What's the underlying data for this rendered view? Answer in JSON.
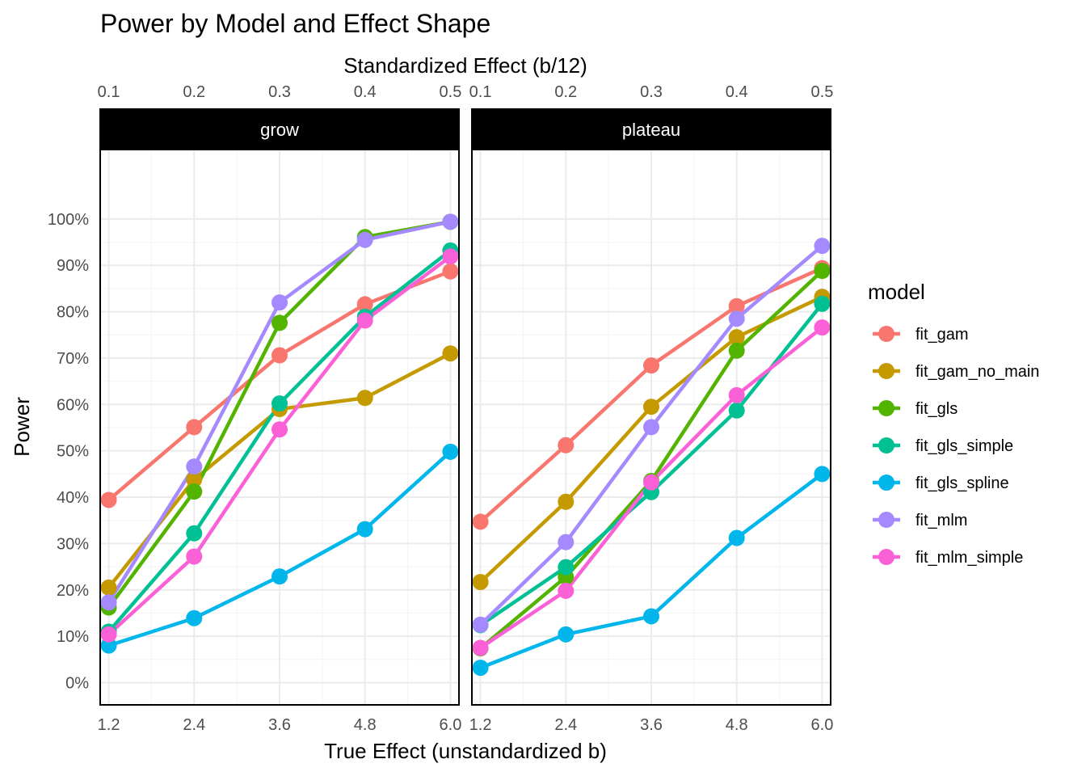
{
  "chart_data": {
    "type": "line",
    "title": "Power by Model and Effect Shape",
    "xlabel": "True Effect (unstandardized b)",
    "secondary_xlabel": "Standardized Effect (b/12)",
    "ylabel": "Power",
    "x": [
      1.2,
      2.4,
      3.6,
      4.8,
      6.0
    ],
    "x_tick_labels": [
      "1.2",
      "2.4",
      "3.6",
      "4.8",
      "6.0"
    ],
    "secondary_x_tick_labels": [
      "0.1",
      "0.2",
      "0.3",
      "0.4",
      "0.5"
    ],
    "y_ticks": [
      0,
      0.1,
      0.2,
      0.3,
      0.4,
      0.5,
      0.6,
      0.7,
      0.8,
      0.9,
      1.0
    ],
    "y_tick_labels": [
      "0%",
      "10%",
      "20%",
      "30%",
      "40%",
      "50%",
      "60%",
      "70%",
      "80%",
      "90%",
      "100%"
    ],
    "xlim": [
      1.08,
      6.12
    ],
    "ylim": [
      -0.048,
      1.148
    ],
    "grid": true,
    "legend": {
      "title": "model",
      "placement": "right",
      "entries": [
        {
          "name": "fit_gam",
          "color": "#F8766D"
        },
        {
          "name": "fit_gam_no_main",
          "color": "#C49A00"
        },
        {
          "name": "fit_gls",
          "color": "#53B400"
        },
        {
          "name": "fit_gls_simple",
          "color": "#00C094"
        },
        {
          "name": "fit_gls_spline",
          "color": "#00B6EB"
        },
        {
          "name": "fit_mlm",
          "color": "#A58AFF"
        },
        {
          "name": "fit_mlm_simple",
          "color": "#FB61D7"
        }
      ]
    },
    "panels": [
      {
        "label": "grow",
        "series": [
          {
            "name": "fit_gam",
            "values": [
              0.394,
              0.551,
              0.706,
              0.816,
              0.887
            ]
          },
          {
            "name": "fit_gam_no_main",
            "values": [
              0.205,
              0.438,
              0.59,
              0.614,
              0.71
            ]
          },
          {
            "name": "fit_gls",
            "values": [
              0.162,
              0.412,
              0.776,
              0.961,
              0.994
            ]
          },
          {
            "name": "fit_gls_simple",
            "values": [
              0.11,
              0.322,
              0.602,
              0.789,
              0.932
            ]
          },
          {
            "name": "fit_gls_spline",
            "values": [
              0.08,
              0.139,
              0.229,
              0.331,
              0.498
            ]
          },
          {
            "name": "fit_mlm",
            "values": [
              0.173,
              0.466,
              0.82,
              0.955,
              0.994
            ]
          },
          {
            "name": "fit_mlm_simple",
            "values": [
              0.104,
              0.272,
              0.546,
              0.781,
              0.919
            ]
          }
        ]
      },
      {
        "label": "plateau",
        "series": [
          {
            "name": "fit_gam",
            "values": [
              0.347,
              0.512,
              0.684,
              0.812,
              0.894
            ]
          },
          {
            "name": "fit_gam_no_main",
            "values": [
              0.217,
              0.39,
              0.595,
              0.745,
              0.832
            ]
          },
          {
            "name": "fit_gls",
            "values": [
              0.074,
              0.228,
              0.435,
              0.716,
              0.888
            ]
          },
          {
            "name": "fit_gls_simple",
            "values": [
              0.124,
              0.249,
              0.411,
              0.587,
              0.817
            ]
          },
          {
            "name": "fit_gls_spline",
            "values": [
              0.032,
              0.104,
              0.143,
              0.312,
              0.45
            ]
          },
          {
            "name": "fit_mlm",
            "values": [
              0.125,
              0.303,
              0.551,
              0.785,
              0.942
            ]
          },
          {
            "name": "fit_mlm_simple",
            "values": [
              0.075,
              0.198,
              0.432,
              0.62,
              0.766
            ]
          }
        ]
      }
    ]
  }
}
